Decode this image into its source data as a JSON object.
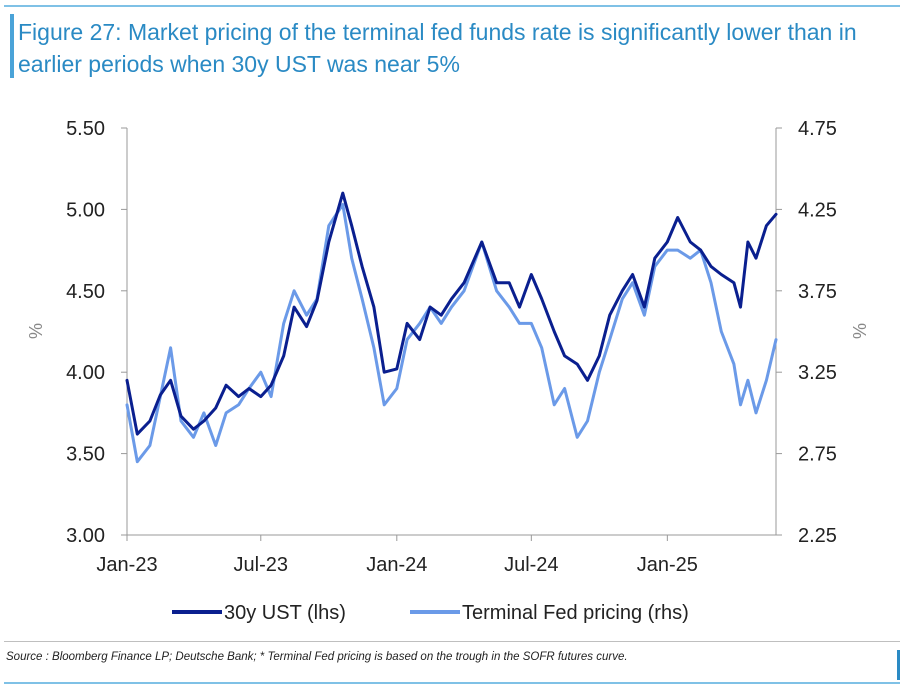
{
  "title": "Figure 27: Market pricing of the terminal fed funds rate is significantly lower than in earlier periods when 30y UST was near 5%",
  "source": "Source : Bloomberg Finance LP; Deutsche Bank; * Terminal Fed pricing is based on the trough in the SOFR futures curve.",
  "chart_data": {
    "type": "line",
    "title": "Figure 27: Market pricing of the terminal fed funds rate is significantly lower than in earlier periods when 30y UST was near 5%",
    "xlabel": "",
    "ylabel": "%",
    "ylabel_right": "%",
    "x_ticks": [
      "Jan-23",
      "Jul-23",
      "Jan-24",
      "Jul-24",
      "Jan-25"
    ],
    "x_range": [
      "2023-01-01",
      "2025-05-28"
    ],
    "y_left": {
      "min": 3.0,
      "max": 5.5,
      "ticks": [
        "3.00",
        "3.50",
        "4.00",
        "4.50",
        "5.00",
        "5.50"
      ]
    },
    "y_right": {
      "min": 2.25,
      "max": 4.75,
      "ticks": [
        "2.25",
        "2.75",
        "3.25",
        "3.75",
        "4.25",
        "4.75"
      ]
    },
    "grid": false,
    "legend_position": "bottom",
    "series": [
      {
        "name": "30y UST (lhs)",
        "axis": "left",
        "color": "#0a1f8f",
        "points": [
          [
            "2023-01-01",
            3.95
          ],
          [
            "2023-01-15",
            3.62
          ],
          [
            "2023-02-01",
            3.7
          ],
          [
            "2023-02-15",
            3.86
          ],
          [
            "2023-03-01",
            3.95
          ],
          [
            "2023-03-15",
            3.73
          ],
          [
            "2023-04-01",
            3.65
          ],
          [
            "2023-04-15",
            3.7
          ],
          [
            "2023-05-01",
            3.78
          ],
          [
            "2023-05-15",
            3.92
          ],
          [
            "2023-06-01",
            3.85
          ],
          [
            "2023-06-15",
            3.9
          ],
          [
            "2023-07-01",
            3.85
          ],
          [
            "2023-07-15",
            3.92
          ],
          [
            "2023-08-01",
            4.1
          ],
          [
            "2023-08-15",
            4.4
          ],
          [
            "2023-09-01",
            4.28
          ],
          [
            "2023-09-15",
            4.44
          ],
          [
            "2023-10-01",
            4.8
          ],
          [
            "2023-10-20",
            5.1
          ],
          [
            "2023-11-01",
            4.9
          ],
          [
            "2023-11-15",
            4.65
          ],
          [
            "2023-12-01",
            4.4
          ],
          [
            "2023-12-15",
            4.0
          ],
          [
            "2024-01-01",
            4.02
          ],
          [
            "2024-01-15",
            4.3
          ],
          [
            "2024-02-01",
            4.2
          ],
          [
            "2024-02-15",
            4.4
          ],
          [
            "2024-03-01",
            4.35
          ],
          [
            "2024-03-15",
            4.45
          ],
          [
            "2024-04-01",
            4.55
          ],
          [
            "2024-04-25",
            4.8
          ],
          [
            "2024-05-15",
            4.55
          ],
          [
            "2024-06-01",
            4.55
          ],
          [
            "2024-06-15",
            4.4
          ],
          [
            "2024-07-01",
            4.6
          ],
          [
            "2024-07-15",
            4.45
          ],
          [
            "2024-08-01",
            4.25
          ],
          [
            "2024-08-15",
            4.1
          ],
          [
            "2024-09-01",
            4.05
          ],
          [
            "2024-09-15",
            3.95
          ],
          [
            "2024-10-01",
            4.1
          ],
          [
            "2024-10-15",
            4.35
          ],
          [
            "2024-11-01",
            4.5
          ],
          [
            "2024-11-15",
            4.6
          ],
          [
            "2024-12-01",
            4.4
          ],
          [
            "2024-12-15",
            4.7
          ],
          [
            "2025-01-01",
            4.8
          ],
          [
            "2025-01-15",
            4.95
          ],
          [
            "2025-02-01",
            4.8
          ],
          [
            "2025-02-15",
            4.75
          ],
          [
            "2025-03-01",
            4.65
          ],
          [
            "2025-03-15",
            4.6
          ],
          [
            "2025-04-01",
            4.55
          ],
          [
            "2025-04-10",
            4.4
          ],
          [
            "2025-04-20",
            4.8
          ],
          [
            "2025-05-01",
            4.7
          ],
          [
            "2025-05-15",
            4.9
          ],
          [
            "2025-05-28",
            4.97
          ]
        ]
      },
      {
        "name": "Terminal Fed pricing (rhs)",
        "axis": "right",
        "color": "#6b9ae8",
        "points": [
          [
            "2023-01-01",
            3.05
          ],
          [
            "2023-01-15",
            2.7
          ],
          [
            "2023-02-01",
            2.8
          ],
          [
            "2023-02-15",
            3.1
          ],
          [
            "2023-03-01",
            3.4
          ],
          [
            "2023-03-15",
            2.95
          ],
          [
            "2023-04-01",
            2.85
          ],
          [
            "2023-04-15",
            3.0
          ],
          [
            "2023-05-01",
            2.8
          ],
          [
            "2023-05-15",
            3.0
          ],
          [
            "2023-06-01",
            3.05
          ],
          [
            "2023-06-15",
            3.15
          ],
          [
            "2023-07-01",
            3.25
          ],
          [
            "2023-07-15",
            3.1
          ],
          [
            "2023-08-01",
            3.55
          ],
          [
            "2023-08-15",
            3.75
          ],
          [
            "2023-09-01",
            3.6
          ],
          [
            "2023-09-15",
            3.7
          ],
          [
            "2023-10-01",
            4.15
          ],
          [
            "2023-10-20",
            4.28
          ],
          [
            "2023-11-01",
            3.95
          ],
          [
            "2023-11-15",
            3.7
          ],
          [
            "2023-12-01",
            3.4
          ],
          [
            "2023-12-15",
            3.05
          ],
          [
            "2024-01-01",
            3.15
          ],
          [
            "2024-01-15",
            3.45
          ],
          [
            "2024-02-01",
            3.55
          ],
          [
            "2024-02-15",
            3.65
          ],
          [
            "2024-03-01",
            3.55
          ],
          [
            "2024-03-15",
            3.65
          ],
          [
            "2024-04-01",
            3.75
          ],
          [
            "2024-04-25",
            4.05
          ],
          [
            "2024-05-15",
            3.75
          ],
          [
            "2024-06-01",
            3.65
          ],
          [
            "2024-06-15",
            3.55
          ],
          [
            "2024-07-01",
            3.55
          ],
          [
            "2024-07-15",
            3.4
          ],
          [
            "2024-08-01",
            3.05
          ],
          [
            "2024-08-15",
            3.15
          ],
          [
            "2024-09-01",
            2.85
          ],
          [
            "2024-09-15",
            2.95
          ],
          [
            "2024-10-01",
            3.25
          ],
          [
            "2024-10-15",
            3.45
          ],
          [
            "2024-11-01",
            3.7
          ],
          [
            "2024-11-15",
            3.8
          ],
          [
            "2024-12-01",
            3.6
          ],
          [
            "2024-12-15",
            3.9
          ],
          [
            "2025-01-01",
            4.0
          ],
          [
            "2025-01-15",
            4.0
          ],
          [
            "2025-02-01",
            3.95
          ],
          [
            "2025-02-15",
            4.0
          ],
          [
            "2025-03-01",
            3.8
          ],
          [
            "2025-03-15",
            3.5
          ],
          [
            "2025-04-01",
            3.3
          ],
          [
            "2025-04-10",
            3.05
          ],
          [
            "2025-04-20",
            3.2
          ],
          [
            "2025-05-01",
            3.0
          ],
          [
            "2025-05-15",
            3.2
          ],
          [
            "2025-05-28",
            3.45
          ]
        ]
      }
    ]
  }
}
